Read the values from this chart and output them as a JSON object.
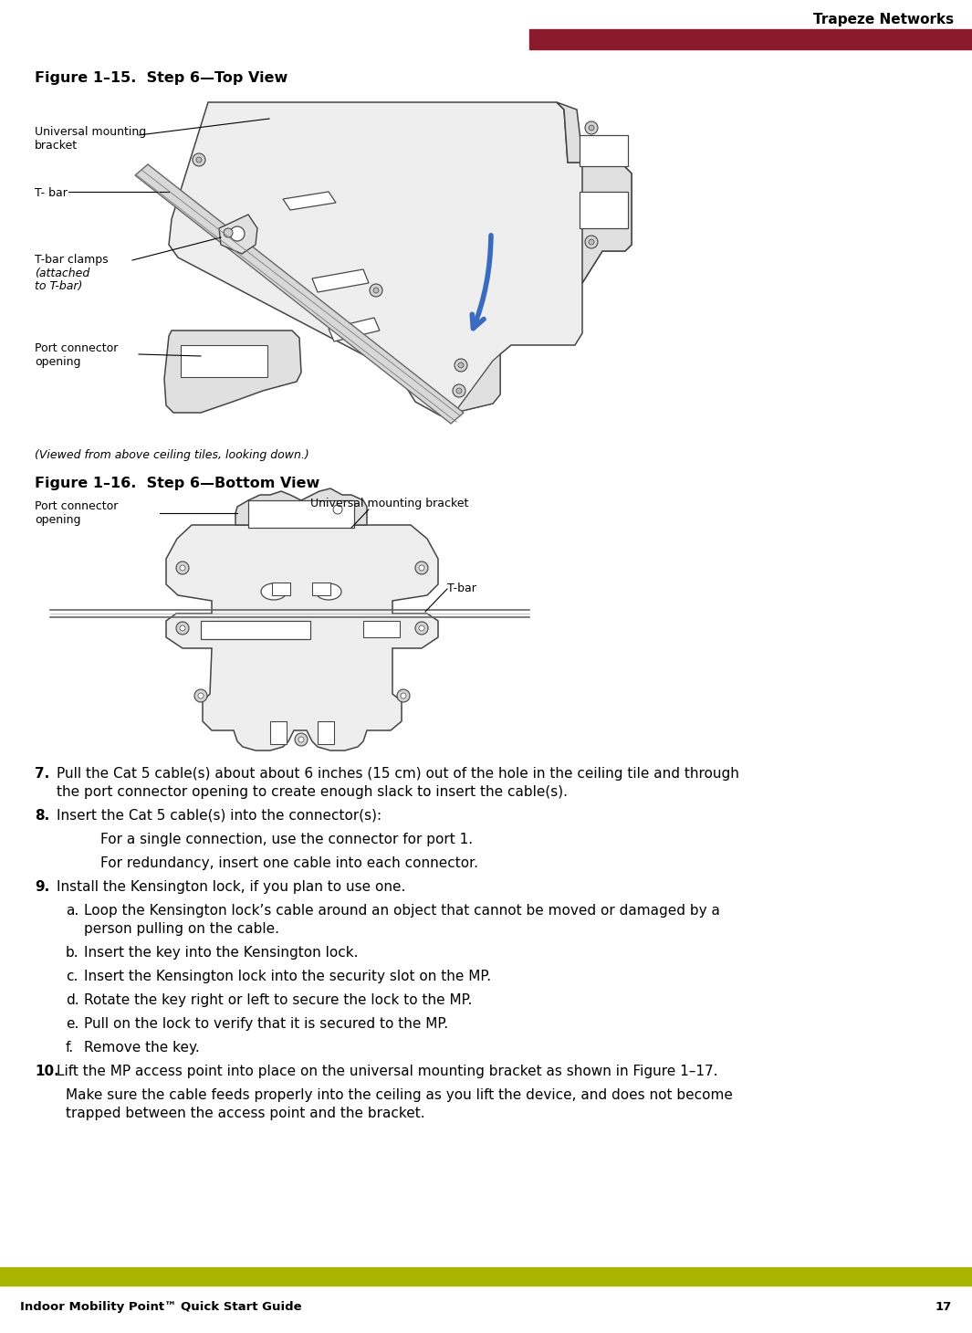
{
  "bg_color": "#ffffff",
  "header_bar_color": "#8B1A2D",
  "footer_bar_color": "#A8B400",
  "header_text": "Trapeze Networks",
  "footer_left_text": "Indoor Mobility Point™ Quick Start Guide",
  "footer_right_text": "17",
  "fig1_title": "Figure 1–15.  Step 6—Top View",
  "fig2_title": "Figure 1–16.  Step 6—Bottom View",
  "fig1_caption": "(Viewed from above ceiling tiles, looking down.)",
  "fig1_labels": {
    "universal_mounting_bracket": "Universal mounting\nbracket",
    "t_bar": "T- bar",
    "t_bar_clamps": "T-bar clamps",
    "t_bar_clamps_italic": "(attached\nto T-bar)",
    "port_connector_opening": "Port connector\nopening"
  },
  "fig2_labels": {
    "port_connector_opening": "Port connector\nopening",
    "universal_mounting_bracket": "Universal mounting bracket",
    "t_bar": "T-bar"
  },
  "body_items": [
    {
      "type": "numbered",
      "num": "7.",
      "bold_num": true,
      "lines": [
        "Pull the Cat 5 cable(s) about about 6 inches (15 cm) out of the hole in the ceiling tile and through",
        "the port connector opening to create enough slack to insert the cable(s)."
      ]
    },
    {
      "type": "numbered",
      "num": "8.",
      "bold_num": true,
      "lines": [
        "Insert the Cat 5 cable(s) into the connector(s):"
      ]
    },
    {
      "type": "indent2",
      "lines": [
        "For a single connection, use the connector for port 1."
      ]
    },
    {
      "type": "indent2",
      "lines": [
        "For redundancy, insert one cable into each connector."
      ]
    },
    {
      "type": "numbered",
      "num": "9.",
      "bold_num": true,
      "lines": [
        "Install the Kensington lock, if you plan to use one."
      ]
    },
    {
      "type": "sub_a",
      "letter": "a.",
      "lines": [
        "Loop the Kensington lock’s cable around an object that cannot be moved or damaged by a",
        "person pulling on the cable."
      ]
    },
    {
      "type": "sub_a",
      "letter": "b.",
      "lines": [
        "Insert the key into the Kensington lock."
      ]
    },
    {
      "type": "sub_a",
      "letter": "c.",
      "lines": [
        "Insert the Kensington lock into the security slot on the MP."
      ]
    },
    {
      "type": "sub_a",
      "letter": "d.",
      "lines": [
        "Rotate the key right or left to secure the lock to the MP."
      ]
    },
    {
      "type": "sub_a",
      "letter": "e.",
      "lines": [
        "Pull on the lock to verify that it is secured to the MP."
      ]
    },
    {
      "type": "sub_a",
      "letter": "f.",
      "lines": [
        "Remove the key."
      ]
    },
    {
      "type": "numbered",
      "num": "10.",
      "bold_num": true,
      "lines": [
        "Lift the MP access point into place on the universal mounting bracket as shown in Figure 1–17."
      ]
    },
    {
      "type": "indent1",
      "lines": [
        "Make sure the cable feeds properly into the ceiling as you lift the device, and does not become",
        "trapped between the access point and the bracket."
      ]
    }
  ],
  "arrow_color": "#3B6BC0",
  "diagram_edge": "#444444",
  "diagram_fill": "#eeeeee",
  "diagram_fill2": "#e0e0e0",
  "label_font_size": 9,
  "body_font_size": 11,
  "title_font_size": 11.5
}
